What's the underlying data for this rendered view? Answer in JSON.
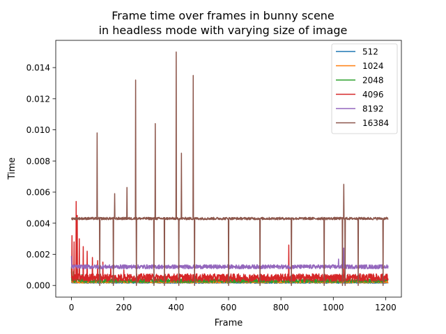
{
  "chart_data": {
    "type": "line",
    "title_line1": "Frame time over frames in bunny scene",
    "title_line2": "in headless mode with varying size of image",
    "xlabel": "Frame",
    "ylabel": "Time",
    "xlim": [
      -60,
      1260
    ],
    "ylim": [
      -0.00075,
      0.01575
    ],
    "x_ticks": [
      0,
      200,
      400,
      600,
      800,
      1000,
      1200
    ],
    "x_tick_labels": [
      "0",
      "200",
      "400",
      "600",
      "800",
      "1000",
      "1200"
    ],
    "y_ticks": [
      0.0,
      0.002,
      0.004,
      0.006,
      0.008,
      0.01,
      0.012,
      0.014
    ],
    "y_tick_labels": [
      "0.000",
      "0.002",
      "0.004",
      "0.006",
      "0.008",
      "0.010",
      "0.012",
      "0.014"
    ],
    "grid": false,
    "legend_position": "top-right",
    "n_frames": 1210,
    "series": [
      {
        "name": "512",
        "color": "#1f77b4",
        "baseline": 0.00018,
        "noise": 4e-05,
        "spikes": [
          [
            0,
            0.0009
          ],
          [
            15,
            0.0004
          ]
        ]
      },
      {
        "name": "1024",
        "color": "#ff7f0e",
        "baseline": 0.00022,
        "noise": 6e-05,
        "spikes": [
          [
            0,
            0.0011
          ],
          [
            12,
            0.0006
          ],
          [
            470,
            0.0005
          ],
          [
            830,
            0.0006
          ]
        ]
      },
      {
        "name": "2048",
        "color": "#2ca02c",
        "baseline": 0.0003,
        "noise": 0.00012,
        "spikes": [
          [
            0,
            0.0012
          ],
          [
            8,
            0.0009
          ],
          [
            40,
            0.0007
          ],
          [
            250,
            0.0006
          ],
          [
            900,
            0.0006
          ]
        ]
      },
      {
        "name": "4096",
        "color": "#d62728",
        "baseline": 0.0005,
        "noise": 0.00025,
        "spikes": [
          [
            2,
            0.0032
          ],
          [
            10,
            0.0028
          ],
          [
            18,
            0.0054
          ],
          [
            22,
            0.0045
          ],
          [
            30,
            0.003
          ],
          [
            45,
            0.0025
          ],
          [
            60,
            0.0022
          ],
          [
            80,
            0.0018
          ],
          [
            100,
            0.0016
          ],
          [
            120,
            0.0015
          ],
          [
            150,
            0.0012
          ],
          [
            200,
            0.001
          ],
          [
            830,
            0.0026
          ],
          [
            1040,
            0.0011
          ]
        ]
      },
      {
        "name": "8192",
        "color": "#9467bd",
        "baseline": 0.0012,
        "noise": 0.00013,
        "spikes": [
          [
            0,
            0.0019
          ],
          [
            1035,
            0.0026
          ],
          [
            1040,
            0.0024
          ],
          [
            1020,
            0.0017
          ]
        ]
      },
      {
        "name": "16384",
        "color": "#8c564b",
        "baseline": 0.0043,
        "noise": 8e-05,
        "spikes": [
          [
            98,
            0.0098
          ],
          [
            165,
            0.0059
          ],
          [
            212,
            0.0063
          ],
          [
            245,
            0.0132
          ],
          [
            320,
            0.0104
          ],
          [
            400,
            0.015
          ],
          [
            420,
            0.0085
          ],
          [
            465,
            0.0135
          ],
          [
            470,
            0.0128
          ],
          [
            1035,
            0.0066
          ],
          [
            1040,
            0.0065
          ],
          [
            1190,
            0.0058
          ]
        ],
        "drops": [
          108,
          160,
          248,
          315,
          355,
          410,
          470,
          600,
          720,
          840,
          965,
          1035,
          1045,
          1095,
          1190
        ],
        "drop_depth": 0.0
      }
    ]
  }
}
